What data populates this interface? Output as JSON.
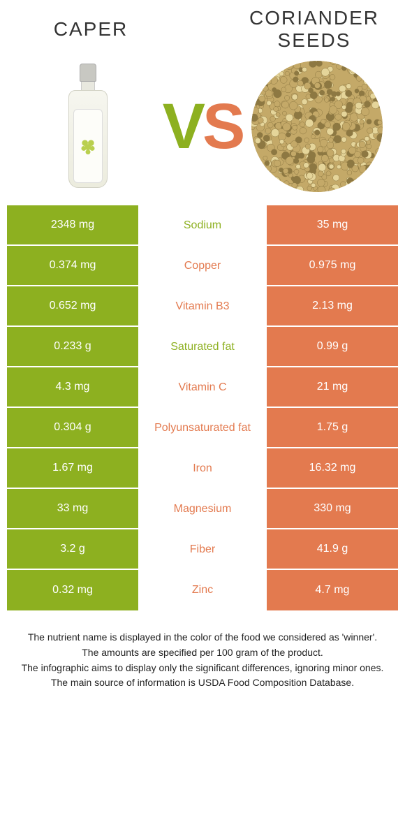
{
  "colors": {
    "left": "#8db020",
    "right": "#e37a4f",
    "label_left": "#8db020",
    "label_right": "#e37a4f",
    "text_white": "#ffffff",
    "seed_fill": "#c4a968",
    "seed_dark": "#8d7842",
    "seed_light": "#e5d59a"
  },
  "header": {
    "left_title": "CAPER",
    "right_title": "CORIANDER SEEDS",
    "vs_v": "V",
    "vs_s": "S"
  },
  "rows": [
    {
      "left": "2348 mg",
      "label": "Sodium",
      "right": "35 mg",
      "winner": "left"
    },
    {
      "left": "0.374 mg",
      "label": "Copper",
      "right": "0.975 mg",
      "winner": "right"
    },
    {
      "left": "0.652 mg",
      "label": "Vitamin B3",
      "right": "2.13 mg",
      "winner": "right"
    },
    {
      "left": "0.233 g",
      "label": "Saturated fat",
      "right": "0.99 g",
      "winner": "left"
    },
    {
      "left": "4.3 mg",
      "label": "Vitamin C",
      "right": "21 mg",
      "winner": "right"
    },
    {
      "left": "0.304 g",
      "label": "Polyunsaturated fat",
      "right": "1.75 g",
      "winner": "right"
    },
    {
      "left": "1.67 mg",
      "label": "Iron",
      "right": "16.32 mg",
      "winner": "right"
    },
    {
      "left": "33 mg",
      "label": "Magnesium",
      "right": "330 mg",
      "winner": "right"
    },
    {
      "left": "3.2 g",
      "label": "Fiber",
      "right": "41.9 g",
      "winner": "right"
    },
    {
      "left": "0.32 mg",
      "label": "Zinc",
      "right": "4.7 mg",
      "winner": "right"
    }
  ],
  "footer": {
    "l1": "The nutrient name is displayed in the color of the food we considered as 'winner'.",
    "l2": "The amounts are specified per 100 gram of the product.",
    "l3": "The infographic aims to display only the significant differences, ignoring minor ones.",
    "l4": "The main source of information is USDA Food Composition Database."
  }
}
